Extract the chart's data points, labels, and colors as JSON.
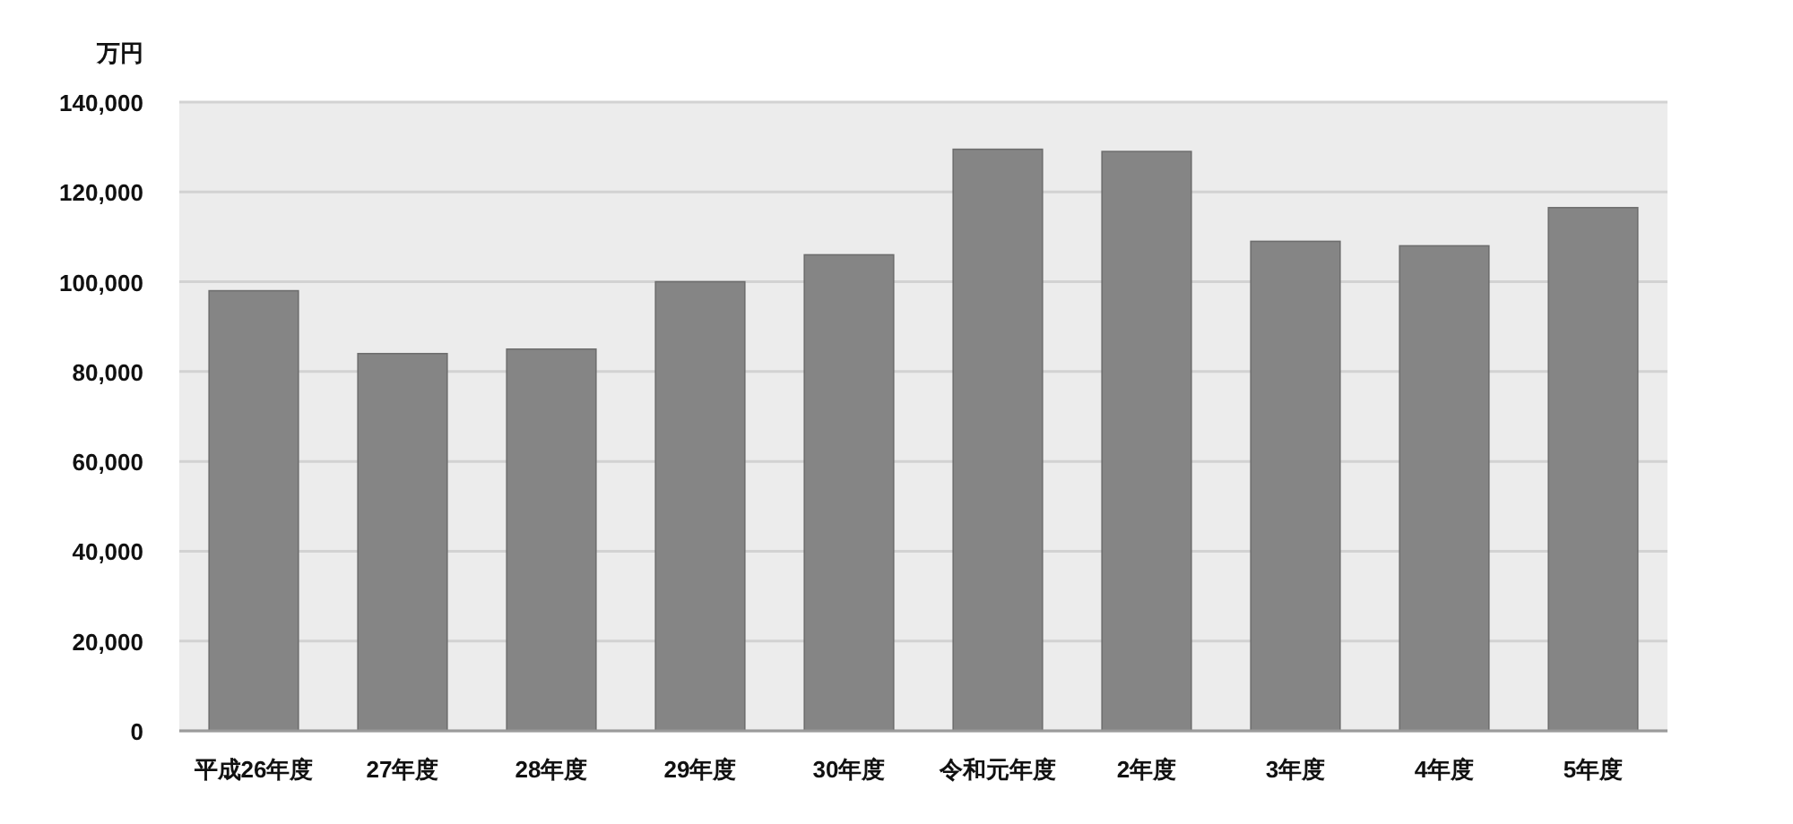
{
  "chart_data": {
    "type": "bar",
    "ylabel": "万円",
    "categories": [
      "平成26年度",
      "27年度",
      "28年度",
      "29年度",
      "30年度",
      "令和元年度",
      "2年度",
      "3年度",
      "4年度",
      "5年度"
    ],
    "values": [
      98000,
      84000,
      85000,
      100000,
      106000,
      129500,
      129000,
      109000,
      108000,
      116500
    ],
    "color": "#858585",
    "ylim": [
      0,
      140000
    ],
    "yticks": [
      0,
      {
        "value": 20000,
        "label": "20,000"
      },
      {
        "value": 40000,
        "label": "40,000"
      },
      {
        "value": 60000,
        "label": "60,000"
      },
      {
        "value": 80000,
        "label": "80,000"
      },
      {
        "value": 100000,
        "label": "100,000"
      },
      {
        "value": 120000,
        "label": "120,000"
      },
      {
        "value": 140000,
        "label": "140,000"
      }
    ],
    "grid": "y"
  }
}
